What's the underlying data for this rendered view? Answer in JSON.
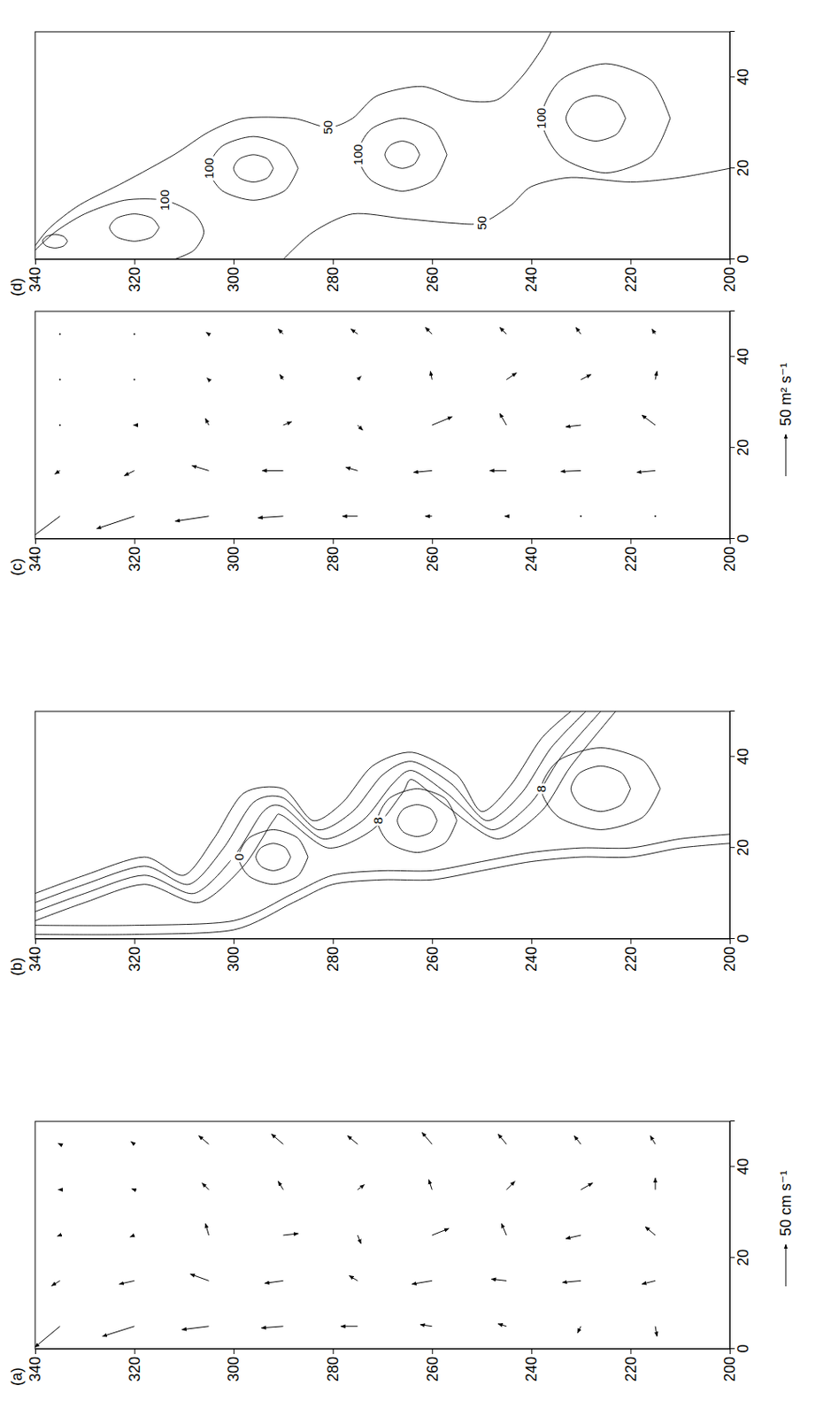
{
  "chart_data": [
    {
      "type": "vector",
      "title": "(a)",
      "xlim": [
        0,
        50
      ],
      "ylim": [
        200,
        340
      ],
      "xticks": [
        0,
        20,
        40
      ],
      "yticks": [
        200,
        220,
        240,
        260,
        280,
        300,
        320,
        340
      ],
      "x": [
        5,
        15,
        25,
        35,
        45,
        5,
        15,
        25,
        35,
        45,
        5,
        15,
        25,
        35,
        45,
        5,
        15,
        25,
        35,
        45,
        5,
        15,
        25,
        35,
        45,
        5,
        15,
        25,
        35,
        45,
        5,
        15,
        25,
        35,
        45,
        5,
        15,
        25,
        35,
        45,
        5,
        15,
        25,
        35,
        45
      ],
      "y": [
        335,
        335,
        335,
        335,
        335,
        320,
        320,
        320,
        320,
        320,
        305,
        305,
        305,
        305,
        305,
        290,
        290,
        290,
        290,
        290,
        275,
        275,
        275,
        275,
        275,
        260,
        260,
        260,
        260,
        260,
        245,
        245,
        245,
        245,
        245,
        230,
        230,
        230,
        230,
        230,
        215,
        215,
        215,
        215,
        215
      ],
      "u": [
        -25,
        -6,
        -1,
        0,
        1,
        -12,
        -4,
        -2,
        1,
        3,
        -4,
        8,
        14,
        8,
        10,
        -2,
        -3,
        2,
        10,
        12,
        0,
        6,
        -10,
        6,
        10,
        2,
        -4,
        8,
        12,
        14,
        3,
        2,
        14,
        10,
        12,
        -8,
        -2,
        -4,
        8,
        10,
        -12,
        -4,
        10,
        14,
        10
      ],
      "v": [
        30,
        10,
        3,
        2,
        2,
        38,
        18,
        5,
        3,
        4,
        32,
        22,
        4,
        8,
        12,
        26,
        22,
        -18,
        6,
        14,
        20,
        10,
        -4,
        -8,
        12,
        14,
        24,
        -20,
        4,
        12,
        10,
        18,
        6,
        -10,
        10,
        4,
        22,
        18,
        -14,
        8,
        -2,
        16,
        12,
        0,
        6
      ],
      "reference_arrow": 50,
      "reference_label": "50 cm s⁻¹"
    },
    {
      "type": "contour",
      "title": "(b)",
      "xlim": [
        0,
        50
      ],
      "ylim": [
        200,
        340
      ],
      "xticks": [
        0,
        20,
        40
      ],
      "yticks": [
        200,
        220,
        240,
        260,
        280,
        300,
        320,
        340
      ],
      "contours": [
        {
          "x": [
            10,
            14,
            18,
            14,
            22,
            32,
            33,
            26,
            30,
            38,
            41,
            36,
            28,
            34,
            44,
            50
          ],
          "y": [
            340,
            330,
            318,
            310,
            304,
            298,
            290,
            284,
            278,
            272,
            264,
            255,
            250,
            244,
            238,
            232
          ]
        },
        {
          "x": [
            8,
            12,
            16,
            12,
            20,
            30,
            31,
            24,
            28,
            36,
            39,
            34,
            26,
            32,
            42,
            50
          ],
          "y": [
            340,
            330,
            318,
            309,
            302,
            296,
            290,
            283,
            276,
            270,
            264,
            256,
            249,
            242,
            236,
            229
          ]
        },
        {
          "x": [
            6,
            10,
            14,
            10,
            18,
            28,
            29,
            22,
            26,
            34,
            37,
            32,
            24,
            30,
            40,
            50
          ],
          "y": [
            340,
            330,
            318,
            308,
            300,
            294,
            290,
            282,
            274,
            268,
            264,
            257,
            248,
            240,
            234,
            226
          ]
        },
        {
          "x": [
            4,
            8,
            12,
            8,
            16,
            26,
            27,
            20,
            24,
            32,
            35,
            30,
            22,
            28,
            38,
            50
          ],
          "y": [
            340,
            330,
            318,
            307,
            298,
            292,
            290,
            281,
            272,
            266,
            264,
            258,
            247,
            238,
            232,
            223
          ]
        },
        {
          "x": [
            1,
            1,
            2,
            8,
            12,
            13,
            13,
            15,
            17,
            18,
            18,
            20,
            21
          ],
          "y": [
            340,
            320,
            300,
            288,
            280,
            270,
            260,
            250,
            240,
            230,
            220,
            210,
            200
          ]
        },
        {
          "x": [
            3,
            3,
            4,
            10,
            14,
            15,
            15,
            17,
            19,
            20,
            20,
            22,
            23
          ],
          "y": [
            340,
            320,
            300,
            288,
            280,
            270,
            260,
            250,
            240,
            230,
            220,
            210,
            200
          ]
        },
        {
          "x": [
            18,
            22.2,
            24,
            22.2,
            18,
            13.8,
            12,
            13.8,
            18
          ],
          "y": [
            285,
            287.1,
            292,
            296.9,
            299,
            296.9,
            292,
            287.1,
            285
          ],
          "label": "0"
        },
        {
          "x": [
            18,
            20.1,
            21,
            20.1,
            18,
            15.9,
            15,
            15.9,
            18
          ],
          "y": [
            288.5,
            289.6,
            292,
            294.4,
            295.5,
            294.4,
            292,
            289.6,
            288.5
          ]
        },
        {
          "x": [
            26,
            30.9,
            33,
            30.9,
            26,
            21.1,
            19,
            21.1,
            26
          ],
          "y": [
            255,
            257.4,
            263,
            268.6,
            271,
            268.6,
            263,
            257.4,
            255
          ],
          "label": "8"
        },
        {
          "x": [
            26,
            28.5,
            29.5,
            28.5,
            26,
            23.5,
            22.5,
            23.5,
            26
          ],
          "y": [
            259,
            260.2,
            263,
            265.8,
            267,
            265.8,
            263,
            260.2,
            259
          ]
        },
        {
          "x": [
            33,
            39.3,
            42,
            39.3,
            33,
            26.7,
            24,
            26.7,
            33
          ],
          "y": [
            214,
            217.6,
            226,
            234.4,
            238,
            234.4,
            226,
            217.6,
            214
          ],
          "label": "8"
        },
        {
          "x": [
            33,
            36.5,
            38,
            36.5,
            33,
            29.5,
            28,
            29.5,
            33
          ],
          "y": [
            220,
            221.8,
            226,
            230.2,
            232,
            230.2,
            226,
            221.8,
            220
          ]
        }
      ]
    },
    {
      "type": "vector",
      "title": "(c)",
      "xlim": [
        0,
        50
      ],
      "ylim": [
        200,
        340
      ],
      "xticks": [
        0,
        20,
        40
      ],
      "yticks": [
        200,
        220,
        240,
        260,
        280,
        300,
        320,
        340
      ],
      "x": [
        5,
        15,
        25,
        35,
        45,
        5,
        15,
        25,
        35,
        45,
        5,
        15,
        25,
        35,
        45,
        5,
        15,
        25,
        35,
        45,
        5,
        15,
        25,
        35,
        45,
        5,
        15,
        25,
        35,
        45,
        5,
        15,
        25,
        35,
        45,
        5,
        15,
        25,
        35,
        45,
        5,
        15,
        25,
        35,
        45
      ],
      "y": [
        335,
        335,
        335,
        335,
        335,
        320,
        320,
        320,
        320,
        320,
        305,
        305,
        305,
        305,
        305,
        290,
        290,
        290,
        290,
        290,
        275,
        275,
        275,
        275,
        275,
        260,
        260,
        260,
        260,
        260,
        245,
        245,
        245,
        245,
        245,
        230,
        230,
        230,
        230,
        230,
        215,
        215,
        215,
        215,
        215
      ],
      "u": [
        -30,
        -4,
        0,
        0,
        0,
        -15,
        -6,
        0,
        0,
        0,
        -6,
        6,
        8,
        2,
        2,
        -2,
        0,
        4,
        6,
        6,
        0,
        4,
        -6,
        4,
        6,
        0,
        -2,
        10,
        10,
        8,
        0,
        0,
        14,
        8,
        8,
        0,
        -1,
        -2,
        6,
        8,
        0,
        -2,
        12,
        10,
        6
      ],
      "v": [
        40,
        6,
        0,
        0,
        0,
        45,
        12,
        1,
        0,
        0,
        40,
        20,
        4,
        2,
        3,
        30,
        25,
        -10,
        4,
        6,
        18,
        14,
        -6,
        -4,
        8,
        8,
        22,
        -24,
        2,
        8,
        2,
        20,
        8,
        -12,
        8,
        0,
        24,
        18,
        -12,
        6,
        0,
        22,
        16,
        -2,
        4
      ],
      "reference_arrow": 50,
      "reference_label": "50 m² s⁻¹"
    },
    {
      "type": "contour",
      "title": "(d)",
      "xlim": [
        0,
        50
      ],
      "ylim": [
        200,
        340
      ],
      "xticks": [
        0,
        20,
        40
      ],
      "yticks": [
        200,
        220,
        240,
        260,
        280,
        300,
        320,
        340
      ],
      "contours": [
        {
          "x": [
            3,
            7,
            12,
            17,
            23,
            28,
            31,
            31,
            29,
            31,
            36,
            38,
            35,
            35,
            40,
            46,
            50
          ],
          "y": [
            340,
            337,
            331,
            322,
            312,
            305,
            298,
            288,
            281,
            276,
            271,
            262,
            254,
            247,
            242,
            238,
            236
          ],
          "label": "50"
        },
        {
          "x": [
            0,
            6,
            10,
            9,
            8,
            8,
            12,
            16,
            18,
            17,
            18,
            20
          ],
          "y": [
            290,
            284,
            276,
            266,
            256,
            250,
            244,
            240,
            232,
            220,
            210,
            200
          ],
          "label": "50"
        },
        {
          "x": [
            2,
            6,
            10,
            13,
            13,
            10,
            6,
            2,
            0
          ],
          "y": [
            340,
            336,
            330,
            322,
            314,
            308,
            306,
            308,
            312
          ],
          "label": "100"
        },
        {
          "x": [
            4,
            5.05,
            5.5,
            5.05,
            4,
            2.95,
            2.5,
            2.95,
            4
          ],
          "y": [
            333.5,
            334.25,
            336,
            337.75,
            338.5,
            337.75,
            336,
            334.25,
            333.5
          ]
        },
        {
          "x": [
            7,
            9.1,
            10,
            9.1,
            7,
            4.9,
            4,
            4.9,
            7
          ],
          "y": [
            315,
            316.5,
            320,
            323.5,
            325,
            323.5,
            320,
            316.5,
            315
          ]
        },
        {
          "x": [
            20,
            24.9,
            27,
            24.9,
            20,
            15.1,
            13,
            15.1,
            20
          ],
          "y": [
            287,
            289.7,
            296,
            302.3,
            305,
            302.3,
            296,
            289.7,
            287
          ],
          "label": "100"
        },
        {
          "x": [
            20,
            22.1,
            23,
            22.1,
            20,
            17.9,
            17,
            17.9,
            20
          ],
          "y": [
            292,
            293.2,
            296,
            298.8,
            300,
            298.8,
            296,
            293.2,
            292
          ]
        },
        {
          "x": [
            23,
            28.6,
            31,
            28.6,
            23,
            17.4,
            15,
            17.4,
            23
          ],
          "y": [
            257,
            259.7,
            266,
            272.3,
            275,
            272.3,
            266,
            259.7,
            257
          ],
          "label": "100"
        },
        {
          "x": [
            23,
            25.1,
            26,
            25.1,
            23,
            20.9,
            20,
            20.9,
            23
          ],
          "y": [
            262.5,
            263.6,
            266,
            268.4,
            269.5,
            268.4,
            266,
            263.6,
            262.5
          ]
        },
        {
          "x": [
            31,
            39.4,
            43,
            39.4,
            31,
            22.6,
            19,
            22.6,
            31
          ],
          "y": [
            212,
            215.9,
            225,
            234.1,
            238,
            234.1,
            225,
            215.9,
            212
          ],
          "label": "100"
        },
        {
          "x": [
            31,
            34.5,
            36,
            34.5,
            31,
            27.5,
            26,
            27.5,
            31
          ],
          "y": [
            221,
            222.8,
            227,
            231.2,
            233,
            231.2,
            227,
            222.8,
            221
          ]
        }
      ]
    }
  ]
}
